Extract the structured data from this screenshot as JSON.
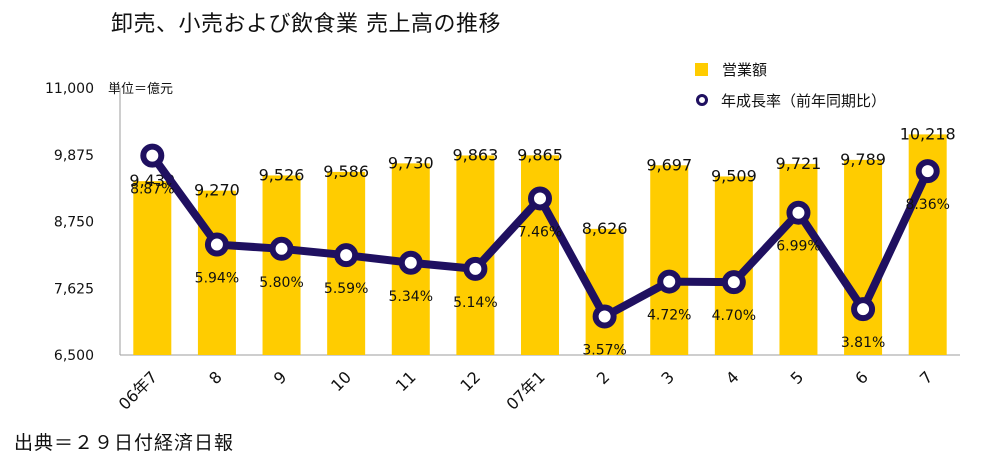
{
  "title": "卸売、小売および飲食業 売上高の推移",
  "unit_label": "単位＝億元",
  "source": "出典＝２９日付経済日報",
  "legend": {
    "bar_label": "営業額",
    "line_label": "年成長率（前年同期比）"
  },
  "colors": {
    "bar": "#FFCC00",
    "line": "#1F1060",
    "axis": "#9e9e9e"
  },
  "chart_data": {
    "type": "bar",
    "categories": [
      "06年7",
      "8",
      "9",
      "10",
      "11",
      "12",
      "07年1",
      "2",
      "3",
      "4",
      "5",
      "6",
      "7"
    ],
    "series": [
      {
        "name": "営業額",
        "type": "bar",
        "values": [
          9430,
          9270,
          9526,
          9586,
          9730,
          9863,
          9865,
          8626,
          9697,
          9509,
          9721,
          9789,
          10218
        ],
        "labels": [
          "9,430",
          "9,270",
          "9,526",
          "9,586",
          "9,730",
          "9,863",
          "9,865",
          "8,626",
          "9,697",
          "9,509",
          "9,721",
          "9,789",
          "10,218"
        ]
      },
      {
        "name": "年成長率（前年同期比）",
        "type": "line",
        "values": [
          8.87,
          5.94,
          5.8,
          5.59,
          5.34,
          5.14,
          7.46,
          3.57,
          4.72,
          4.7,
          6.99,
          3.81,
          8.36
        ],
        "labels": [
          "8.87%",
          "5.94%",
          "5.80%",
          "5.59%",
          "5.34%",
          "5.14%",
          "7.46%",
          "3.57%",
          "4.72%",
          "4.70%",
          "6.99%",
          "3.81%",
          "8.36%"
        ]
      }
    ],
    "y_ticks": [
      "11,000",
      "9,875",
      "8,750",
      "7,625",
      "6,500"
    ],
    "ylim": [
      6500,
      11000
    ],
    "grid": false,
    "legend_position": "top-right"
  }
}
